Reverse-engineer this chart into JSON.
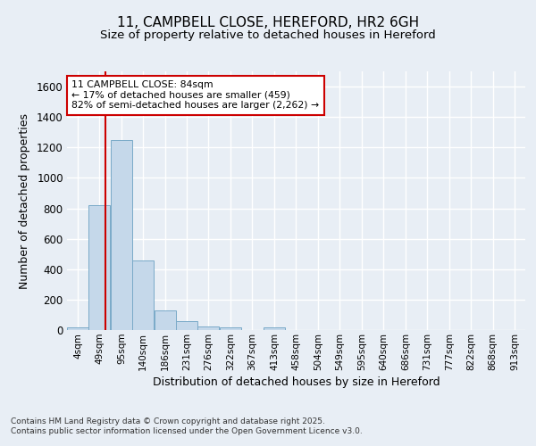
{
  "title1": "11, CAMPBELL CLOSE, HEREFORD, HR2 6GH",
  "title2": "Size of property relative to detached houses in Hereford",
  "xlabel": "Distribution of detached houses by size in Hereford",
  "ylabel": "Number of detached properties",
  "bin_labels": [
    "4sqm",
    "49sqm",
    "95sqm",
    "140sqm",
    "186sqm",
    "231sqm",
    "276sqm",
    "322sqm",
    "367sqm",
    "413sqm",
    "458sqm",
    "504sqm",
    "549sqm",
    "595sqm",
    "640sqm",
    "686sqm",
    "731sqm",
    "777sqm",
    "822sqm",
    "868sqm",
    "913sqm"
  ],
  "bin_lefts": [
    4,
    49,
    95,
    140,
    186,
    231,
    276,
    322,
    367,
    413,
    458,
    504,
    549,
    595,
    640,
    686,
    731,
    777,
    822,
    868,
    913
  ],
  "bar_heights": [
    20,
    820,
    1250,
    460,
    130,
    60,
    25,
    15,
    0,
    15,
    0,
    0,
    0,
    0,
    0,
    0,
    0,
    0,
    0,
    0
  ],
  "bar_color": "#c5d8ea",
  "bar_edge_color": "#7aaac8",
  "property_size": 84,
  "vline_color": "#cc0000",
  "ylim": [
    0,
    1700
  ],
  "yticks": [
    0,
    200,
    400,
    600,
    800,
    1000,
    1200,
    1400,
    1600
  ],
  "annotation_line1": "11 CAMPBELL CLOSE: 84sqm",
  "annotation_line2": "← 17% of detached houses are smaller (459)",
  "annotation_line3": "82% of semi-detached houses are larger (2,262) →",
  "annotation_box_color": "#ffffff",
  "annotation_border_color": "#cc0000",
  "footer_line1": "Contains HM Land Registry data © Crown copyright and database right 2025.",
  "footer_line2": "Contains public sector information licensed under the Open Government Licence v3.0.",
  "background_color": "#e8eef5",
  "grid_color": "#ffffff",
  "bin_width": 45
}
